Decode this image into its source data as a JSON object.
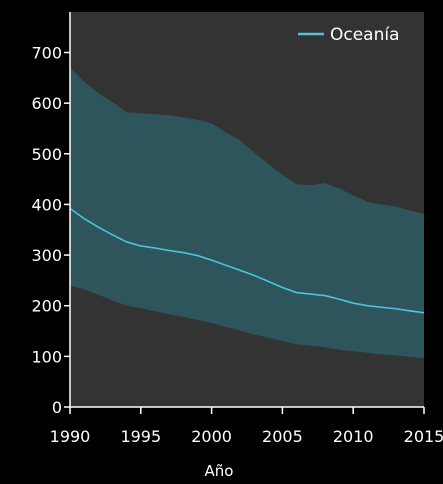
{
  "chart_data": {
    "type": "line",
    "title": "",
    "xlabel": "Año",
    "ylabel": "",
    "xlim": [
      1990,
      2015
    ],
    "ylim": [
      0,
      780
    ],
    "xticks": [
      "1990",
      "1995",
      "2000",
      "2005",
      "2010",
      "2015"
    ],
    "yticks": [
      "0",
      "100",
      "200",
      "300",
      "400",
      "500",
      "600",
      "700"
    ],
    "legend_position": "top-right",
    "grid": false,
    "colors": {
      "background": "#000000",
      "plot_background": "#333333",
      "band_fill": "#2e545c",
      "line": "#4ec3dc",
      "axis": "#ffffff",
      "text": "#ffffff"
    },
    "series": [
      {
        "name": "Oceanía",
        "x": [
          1990,
          1991,
          1992,
          1993,
          1994,
          1995,
          1996,
          1997,
          1998,
          1999,
          2000,
          2001,
          2002,
          2003,
          2004,
          2005,
          2006,
          2007,
          2008,
          2009,
          2010,
          2011,
          2012,
          2013,
          2014,
          2015
        ],
        "values": [
          392,
          372,
          355,
          340,
          326,
          318,
          314,
          309,
          305,
          299,
          290,
          280,
          270,
          260,
          248,
          236,
          226,
          223,
          220,
          213,
          205,
          200,
          197,
          194,
          190,
          186
        ],
        "lower": [
          240,
          232,
          222,
          210,
          200,
          195,
          189,
          183,
          178,
          172,
          166,
          158,
          151,
          143,
          137,
          130,
          124,
          121,
          118,
          113,
          110,
          107,
          104,
          102,
          99,
          96
        ],
        "upper": [
          670,
          642,
          620,
          602,
          582,
          580,
          578,
          576,
          572,
          567,
          560,
          542,
          527,
          503,
          480,
          458,
          440,
          438,
          442,
          432,
          418,
          405,
          400,
          396,
          388,
          381
        ]
      }
    ]
  }
}
